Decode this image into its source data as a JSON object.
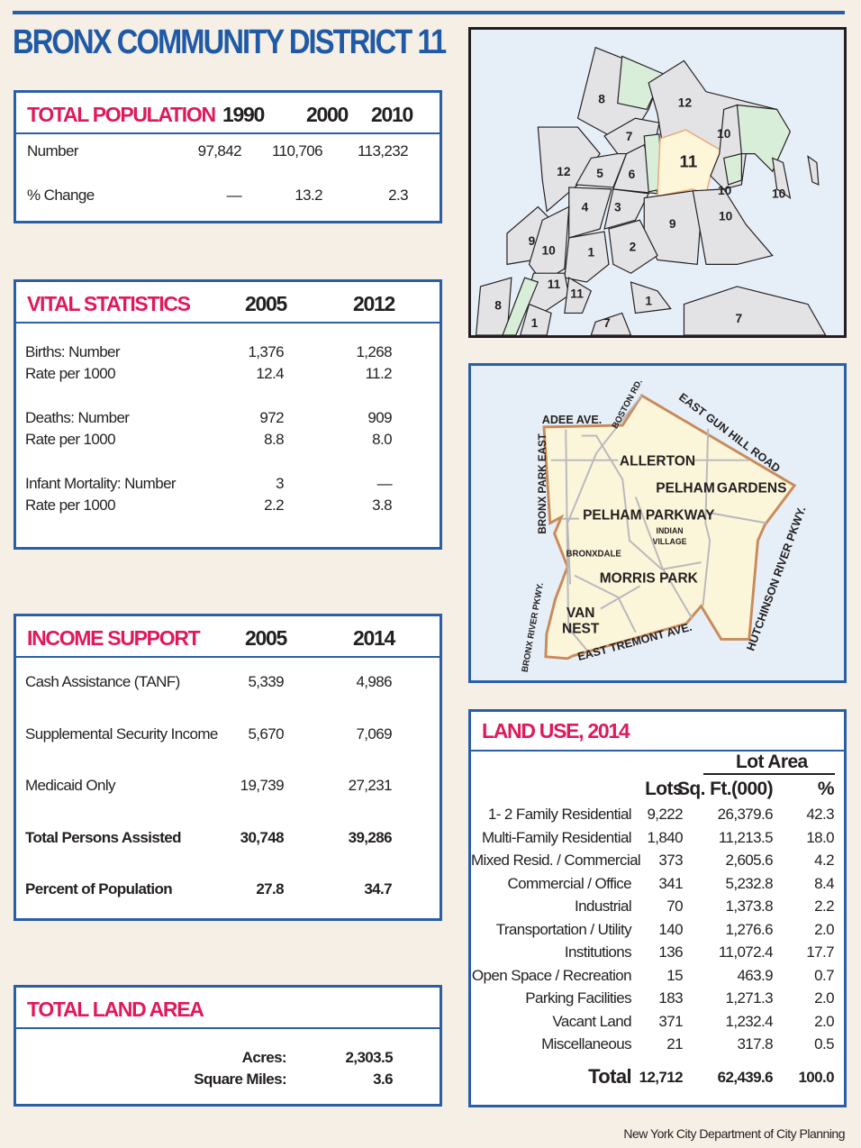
{
  "title": "BRONX COMMUNITY DISTRICT 11",
  "population": {
    "heading": "TOTAL POPULATION",
    "years": [
      "1990",
      "2000",
      "2010"
    ],
    "rows": [
      {
        "label": "Number",
        "values": [
          "97,842",
          "110,706",
          "113,232"
        ]
      },
      {
        "label": "% Change",
        "values": [
          "—",
          "13.2",
          "2.3"
        ]
      }
    ]
  },
  "vital": {
    "heading": "VITAL STATISTICS",
    "years": [
      "2005",
      "2012"
    ],
    "rows": [
      {
        "label": "Births: Number",
        "values": [
          "1,376",
          "1,268"
        ]
      },
      {
        "label": "Rate per 1000",
        "values": [
          "12.4",
          "11.2"
        ]
      },
      {
        "label": "Deaths: Number",
        "values": [
          "972",
          "909"
        ]
      },
      {
        "label": "Rate per 1000",
        "values": [
          "8.8",
          "8.0"
        ]
      },
      {
        "label": "Infant Mortality: Number",
        "values": [
          "3",
          "—"
        ]
      },
      {
        "label": "Rate per 1000",
        "values": [
          "2.2",
          "3.8"
        ]
      }
    ]
  },
  "income": {
    "heading": "INCOME SUPPORT",
    "years": [
      "2005",
      "2014"
    ],
    "rows": [
      {
        "label": "Cash Assistance (TANF)",
        "values": [
          "5,339",
          "4,986"
        ]
      },
      {
        "label": "Supplemental Security Income",
        "values": [
          "5,670",
          "7,069"
        ]
      },
      {
        "label": "Medicaid Only",
        "values": [
          "19,739",
          "27,231"
        ]
      },
      {
        "label": "Total Persons Assisted",
        "values": [
          "30,748",
          "39,286"
        ],
        "bold": true
      },
      {
        "label": "Percent of Population",
        "values": [
          "27.8",
          "34.7"
        ],
        "bold": true
      }
    ]
  },
  "land_area": {
    "heading": "TOTAL LAND AREA",
    "rows": [
      {
        "label": "Acres:",
        "value": "2,303.5"
      },
      {
        "label": "Square Miles:",
        "value": "3.6"
      }
    ]
  },
  "land_use": {
    "heading": "LAND USE, 2014",
    "group_header": "Lot Area",
    "columns": [
      "Lots",
      "Sq. Ft.(000)",
      "%"
    ],
    "rows": [
      {
        "label": "1- 2 Family Residential",
        "values": [
          "9,222",
          "26,379.6",
          "42.3"
        ]
      },
      {
        "label": "Multi-Family Residential",
        "values": [
          "1,840",
          "11,213.5",
          "18.0"
        ]
      },
      {
        "label": "Mixed Resid. / Commercial",
        "values": [
          "373",
          "2,605.6",
          "4.2"
        ]
      },
      {
        "label": "Commercial / Office",
        "values": [
          "341",
          "5,232.8",
          "8.4"
        ]
      },
      {
        "label": "Industrial",
        "values": [
          "70",
          "1,373.8",
          "2.2"
        ]
      },
      {
        "label": "Transportation / Utility",
        "values": [
          "140",
          "1,276.6",
          "2.0"
        ]
      },
      {
        "label": "Institutions",
        "values": [
          "136",
          "11,072.4",
          "17.7"
        ]
      },
      {
        "label": "Open Space / Recreation",
        "values": [
          "15",
          "463.9",
          "0.7"
        ]
      },
      {
        "label": "Parking Facilities",
        "values": [
          "183",
          "1,271.3",
          "2.0"
        ]
      },
      {
        "label": "Vacant Land",
        "values": [
          "371",
          "1,232.4",
          "2.0"
        ]
      },
      {
        "label": "Miscellaneous",
        "values": [
          "21",
          "317.8",
          "0.5"
        ]
      }
    ],
    "total": {
      "label": "Total",
      "values": [
        "12,712",
        "62,439.6",
        "100.0"
      ]
    }
  },
  "borough_map": {
    "highlight_color": "#fdf6d8",
    "highlight_border": "#e8a878",
    "park_color": "#d9eed9",
    "district_color": "#e3e3e6",
    "water_color": "#e6eff8",
    "labels": [
      "8",
      "12",
      "10",
      "7",
      "11",
      "12",
      "5",
      "6",
      "10",
      "4",
      "3",
      "10",
      "9",
      "10",
      "9",
      "10",
      "1",
      "2",
      "11",
      "11",
      "1",
      "7",
      "8",
      "1",
      "7"
    ]
  },
  "district_map": {
    "boundary_color": "#c98a5a",
    "fill": "#fbf5d9",
    "streets": [
      "ADEE AVE.",
      "BOSTON RD.",
      "EAST GUN HILL ROAD",
      "BRONX PARK EAST",
      "HUTCHINSON RIVER PKWY.",
      "EAST TREMONT AVE.",
      "BRONX RIVER PKWY."
    ],
    "neighborhoods": [
      "ALLERTON",
      "PELHAM",
      "GARDENS",
      "PELHAM PARKWAY",
      "INDIAN",
      "VILLAGE",
      "BRONXDALE",
      "MORRIS PARK",
      "VAN",
      "NEST"
    ]
  },
  "footer": "New York City Department of City Planning"
}
